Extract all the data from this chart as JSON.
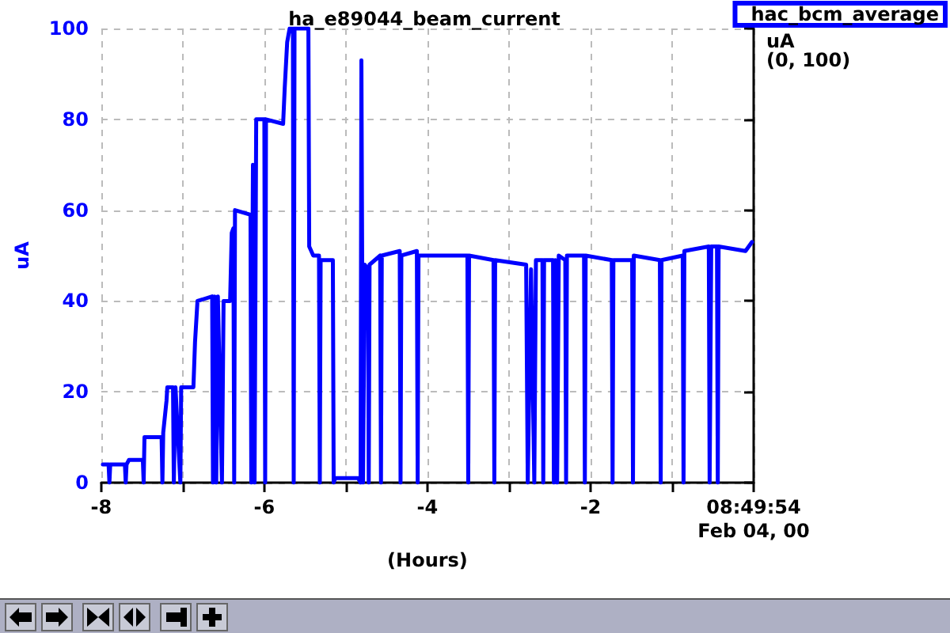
{
  "chart_data": {
    "type": "line",
    "title": "ha_e89044_beam_current",
    "xlabel": "(Hours)",
    "ylabel": "uA",
    "annotations": [
      "uA",
      "(0, 100)"
    ],
    "series": [
      {
        "name": "hac_bcm_average",
        "color": "#0000ff",
        "x": [
          -7.98,
          -7.91,
          -7.9,
          -7.89,
          -7.71,
          -7.7,
          -7.69,
          -7.66,
          -7.49,
          -7.48,
          -7.47,
          -7.26,
          -7.25,
          -7.24,
          -7.2,
          -7.19,
          -7.12,
          -7.11,
          -7.09,
          -7.03,
          -7.02,
          -6.87,
          -6.85,
          -6.82,
          -6.64,
          -6.63,
          -6.61,
          -6.59,
          -6.57,
          -6.52,
          -6.5,
          -6.42,
          -6.4,
          -6.38,
          -6.37,
          -6.36,
          -6.17,
          -6.16,
          -6.14,
          -6.12,
          -6.1,
          -6,
          -5.99,
          -5.98,
          -5.77,
          -5.75,
          -5.72,
          -5.69,
          -5.65,
          -5.64,
          -5.63,
          -5.46,
          -5.45,
          -5.4,
          -5.33,
          -5.32,
          -5.31,
          -5.16,
          -5.15,
          -5.13,
          -4.85,
          -4.82,
          -4.81,
          -4.79,
          -4.77,
          -4.73,
          -4.72,
          -4.71,
          -4.58,
          -4.57,
          -4.56,
          -4.34,
          -4.33,
          -4.32,
          -4.13,
          -4.12,
          -4.11,
          -3.51,
          -3.5,
          -3.49,
          -3.19,
          -3.18,
          -3.17,
          -2.79,
          -2.77,
          -2.73,
          -2.69,
          -2.67,
          -2.59,
          -2.58,
          -2.57,
          -2.46,
          -2.45,
          -2.43,
          -2.41,
          -2.39,
          -2.31,
          -2.3,
          -2.29,
          -2.08,
          -2.07,
          -2.06,
          -1.74,
          -1.73,
          -1.72,
          -1.49,
          -1.48,
          -1.47,
          -1.15,
          -1.14,
          -1.13,
          -0.87,
          -0.86,
          -0.85,
          -0.55,
          -0.54,
          -0.52,
          -0.45,
          -0.44,
          -0.43,
          -0.1,
          -0.02
        ],
        "values": [
          4,
          4,
          0,
          4,
          4,
          0,
          4,
          5,
          5,
          0,
          10,
          10,
          0,
          11,
          18,
          21,
          21,
          0,
          21,
          0,
          21,
          21,
          31,
          40,
          41,
          0,
          41,
          0,
          41,
          0,
          40,
          40,
          55,
          56,
          0,
          60,
          59,
          0,
          70,
          0,
          80,
          80,
          0,
          80,
          79,
          87,
          97,
          100,
          100,
          0,
          100,
          100,
          52,
          50,
          50,
          0,
          49,
          49,
          0,
          1,
          1,
          0,
          93,
          0,
          48,
          47,
          0,
          48,
          50,
          0,
          50,
          51,
          0,
          50,
          51,
          0,
          50,
          50,
          0,
          50,
          49,
          0,
          49,
          48,
          0,
          47,
          0,
          49,
          49,
          0,
          49,
          49,
          0,
          49,
          0,
          50,
          49,
          0,
          50,
          50,
          0,
          50,
          49,
          0,
          49,
          49,
          0,
          50,
          49,
          0,
          49,
          50,
          0,
          51,
          52,
          0,
          52,
          52,
          0,
          52,
          51,
          53
        ]
      }
    ],
    "xlim": [
      -8,
      0
    ],
    "xticks": [
      -8,
      {
        "value": -7,
        "label": null
      },
      -6,
      {
        "value": -5,
        "label": null
      },
      -4,
      {
        "value": -3,
        "label": null
      },
      -2,
      {
        "value": -1,
        "label": null
      },
      {
        "value": 0,
        "label": "08:49:54\nFeb 04, 00"
      }
    ],
    "ylim": [
      0,
      100
    ],
    "yticks": [
      0,
      20,
      40,
      60,
      80,
      100
    ],
    "grid": true,
    "legend": "top right",
    "marker": "none",
    "line_style": "solid"
  }
}
